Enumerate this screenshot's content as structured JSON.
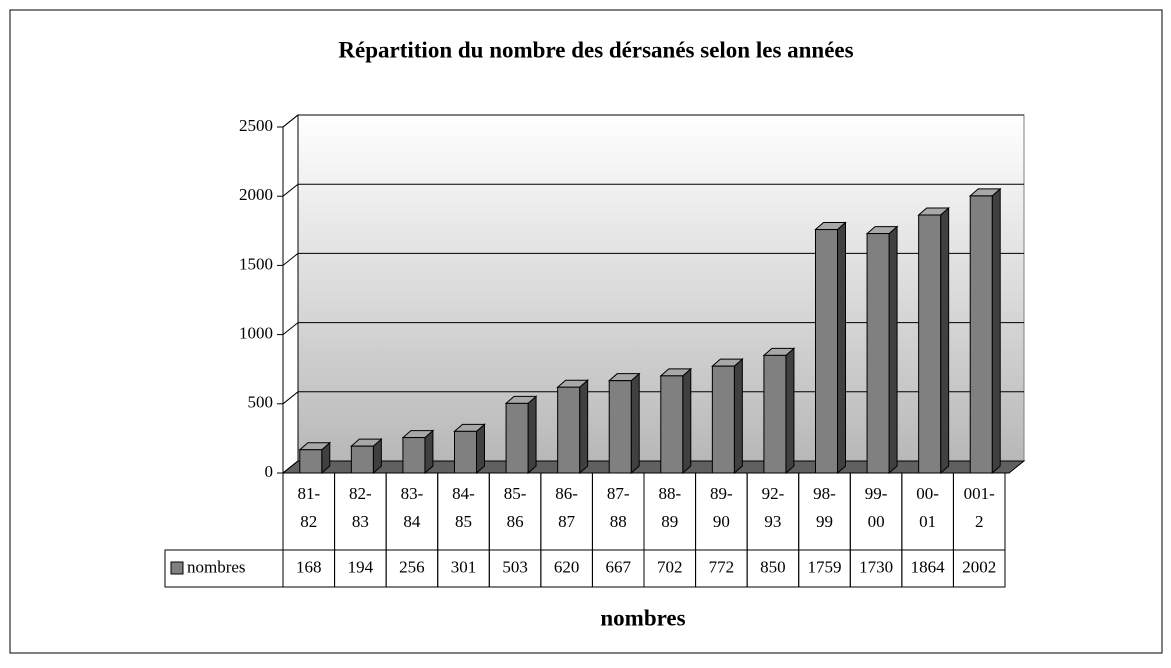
{
  "chart_data": {
    "type": "bar3d",
    "title": "Répartition du nombre des dérsanés selon les années",
    "x_label": "nombres",
    "categories": [
      "81-82",
      "82-83",
      "83-84",
      "84-85",
      "85-86",
      "86-87",
      "87-88",
      "88-89",
      "89-90",
      "92-93",
      "98-99",
      "99-00",
      "00-01",
      "001-2"
    ],
    "series": [
      {
        "name": "nombres",
        "color": "#808080",
        "values": [
          168,
          194,
          256,
          301,
          503,
          620,
          667,
          702,
          772,
          850,
          1759,
          1730,
          1864,
          2002
        ]
      }
    ],
    "ylim": [
      0,
      2500
    ],
    "yticks": [
      0,
      500,
      1000,
      1500,
      2000,
      2500
    ],
    "grid": true,
    "legend": "data-table"
  }
}
